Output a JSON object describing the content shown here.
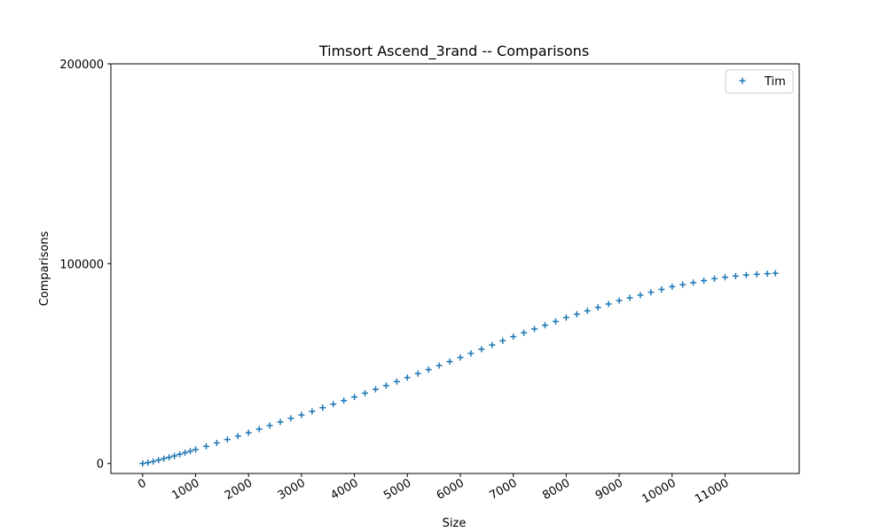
{
  "chart_data": {
    "type": "scatter",
    "title": "Timsort Ascend_3rand -- Comparisons",
    "xlabel": "Size",
    "ylabel": "Comparisons",
    "xlim": [
      -600,
      12400
    ],
    "ylim": [
      -5000,
      200000
    ],
    "xticks": [
      0,
      1000,
      2000,
      3000,
      4000,
      5000,
      6000,
      7000,
      8000,
      9000,
      10000,
      11000
    ],
    "yticks": [
      0,
      100000,
      200000
    ],
    "xtick_rotation": 30,
    "grid": false,
    "legend": "top-right",
    "marker": "+",
    "color": "#1f77b4",
    "series": [
      {
        "name": "Tim",
        "x": [
          0,
          100,
          200,
          300,
          400,
          500,
          600,
          700,
          800,
          900,
          1000,
          1200,
          1400,
          1600,
          1800,
          2000,
          2200,
          2400,
          2600,
          2800,
          3000,
          3200,
          3400,
          3600,
          3800,
          4000,
          4200,
          4400,
          4600,
          4800,
          5000,
          5200,
          5400,
          5600,
          5800,
          6000,
          6200,
          6400,
          6600,
          6800,
          7000,
          7200,
          7400,
          7600,
          7800,
          8000,
          8200,
          8400,
          8600,
          8800,
          9000,
          9200,
          9400,
          9600,
          9800,
          10000,
          10200,
          10400,
          10600,
          10800,
          11000,
          11200,
          11400,
          11600,
          11800,
          11950
        ],
        "y": [
          0,
          450,
          1000,
          1700,
          2400,
          3100,
          3800,
          4600,
          5400,
          6200,
          7000,
          8600,
          10300,
          12000,
          13700,
          15400,
          17200,
          19000,
          20800,
          22600,
          24300,
          26100,
          27900,
          29700,
          31500,
          33300,
          35200,
          37100,
          39000,
          41000,
          43000,
          45000,
          47000,
          49000,
          51000,
          53000,
          55100,
          57200,
          59300,
          61400,
          63500,
          65400,
          67300,
          69200,
          71100,
          73000,
          74700,
          76400,
          78100,
          79800,
          81500,
          82900,
          84300,
          85700,
          87100,
          88500,
          89500,
          90500,
          91500,
          92500,
          93200,
          93800,
          94300,
          94700,
          95000,
          95200
        ]
      }
    ]
  }
}
